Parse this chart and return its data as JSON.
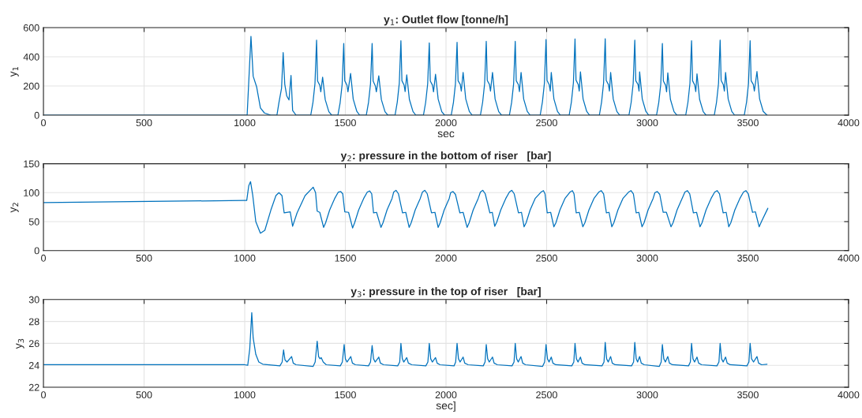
{
  "chart_data": [
    {
      "type": "line",
      "title": "y$_{1}$: Outlet flow [tonne/h]",
      "xlabel": "sec",
      "ylabel": "y$_{1}$",
      "xlim": [
        0,
        4000
      ],
      "xticks": [
        0,
        500,
        1000,
        1500,
        2000,
        2500,
        3000,
        3500,
        4000
      ],
      "ylim": [
        0,
        600
      ],
      "yticks": [
        0,
        200,
        400,
        600
      ],
      "grid": true,
      "series": [
        {
          "color": "#0072bd",
          "x": [
            0,
            1012,
            1031,
            1042,
            1059,
            1078,
            1098,
            1130,
            1160,
            1170,
            1183,
            1191,
            1199,
            1209,
            1220,
            1230,
            1238,
            1255,
            1328,
            1339,
            1349,
            1357,
            1362,
            1373,
            1378,
            1387,
            1400,
            1418,
            1432,
            1463,
            1474,
            1484,
            1492,
            1497,
            1508,
            1513,
            1526,
            1539,
            1557,
            1571,
            1604,
            1615,
            1625,
            1633,
            1638,
            1649,
            1654,
            1666,
            1679,
            1697,
            1711,
            1747,
            1758,
            1768,
            1776,
            1781,
            1792,
            1797,
            1805,
            1818,
            1836,
            1850,
            1888,
            1899,
            1909,
            1917,
            1922,
            1933,
            1938,
            1948,
            1961,
            1979,
            1993,
            2026,
            2037,
            2047,
            2055,
            2060,
            2071,
            2076,
            2085,
            2098,
            2116,
            2130,
            2171,
            2182,
            2192,
            2200,
            2205,
            2216,
            2221,
            2231,
            2244,
            2262,
            2276,
            2315,
            2326,
            2336,
            2344,
            2349,
            2360,
            2365,
            2373,
            2386,
            2404,
            2418,
            2468,
            2479,
            2489,
            2497,
            2502,
            2513,
            2518,
            2523,
            2536,
            2554,
            2568,
            2612,
            2623,
            2633,
            2641,
            2646,
            2657,
            2662,
            2668,
            2681,
            2699,
            2713,
            2762,
            2773,
            2783,
            2791,
            2796,
            2807,
            2812,
            2818,
            2831,
            2849,
            2863,
            2909,
            2920,
            2930,
            2938,
            2943,
            2954,
            2959,
            2962,
            2975,
            2993,
            3007,
            3046,
            3057,
            3067,
            3075,
            3080,
            3091,
            3096,
            3102,
            3115,
            3133,
            3147,
            3191,
            3202,
            3212,
            3220,
            3225,
            3236,
            3241,
            3247,
            3260,
            3278,
            3292,
            3333,
            3344,
            3354,
            3362,
            3367,
            3378,
            3383,
            3389,
            3402,
            3420,
            3434,
            3482,
            3493,
            3503,
            3511,
            3516,
            3527,
            3532,
            3545,
            3558,
            3576,
            3595
          ],
          "values": [
            0,
            0,
            540,
            267,
            195,
            50,
            15,
            0,
            0,
            86,
            185,
            429,
            212,
            131,
            104,
            272,
            32,
            0,
            0,
            87,
            216,
            514,
            234,
            205,
            160,
            260,
            106,
            24,
            0,
            0,
            85,
            210,
            492,
            236,
            205,
            160,
            286,
            110,
            26,
            0,
            0,
            87,
            216,
            492,
            234,
            200,
            160,
            270,
            106,
            24,
            0,
            0,
            90,
            220,
            510,
            236,
            205,
            162,
            276,
            108,
            25,
            0,
            0,
            88,
            215,
            496,
            234,
            205,
            160,
            280,
            110,
            24,
            0,
            0,
            87,
            216,
            499,
            236,
            210,
            165,
            293,
            112,
            25,
            0,
            0,
            88,
            218,
            506,
            238,
            210,
            165,
            293,
            110,
            24,
            0,
            0,
            87,
            216,
            506,
            236,
            208,
            162,
            293,
            110,
            25,
            0,
            0,
            90,
            220,
            519,
            238,
            208,
            165,
            293,
            112,
            25,
            0,
            0,
            90,
            222,
            523,
            240,
            210,
            165,
            297,
            112,
            26,
            0,
            0,
            90,
            222,
            524,
            238,
            210,
            165,
            293,
            110,
            25,
            0,
            0,
            88,
            218,
            514,
            236,
            210,
            165,
            297,
            112,
            26,
            0,
            0,
            86,
            212,
            492,
            234,
            205,
            160,
            290,
            108,
            24,
            0,
            0,
            88,
            218,
            510,
            236,
            205,
            162,
            283,
            108,
            24,
            0,
            0,
            88,
            218,
            515,
            238,
            208,
            165,
            293,
            110,
            25,
            0,
            0,
            88,
            218,
            510,
            236,
            210,
            165,
            299,
            112,
            26,
            0
          ]
        }
      ]
    },
    {
      "type": "line",
      "title": "y$_{2}$: pressure in the bottom of riser   [bar]",
      "ylabel": "y$_{2}$",
      "xlim": [
        0,
        4000
      ],
      "xticks": [
        0,
        500,
        1000,
        1500,
        2000,
        2500,
        3000,
        3500,
        4000
      ],
      "ylim": [
        0,
        150
      ],
      "yticks": [
        0,
        50,
        100,
        150
      ],
      "grid": true,
      "series": [
        {
          "color": "#0072bd",
          "x": [
            0,
            1000,
            1010,
            1020,
            1029,
            1040,
            1055,
            1078,
            1100,
            1130,
            1155,
            1170,
            1185,
            1196,
            1226,
            1238,
            1260,
            1300,
            1340,
            1352,
            1360,
            1373,
            1392,
            1402,
            1422,
            1447,
            1465,
            1477,
            1487,
            1497,
            1516,
            1536,
            1546,
            1566,
            1591,
            1609,
            1621,
            1631,
            1640,
            1655,
            1677,
            1687,
            1707,
            1732,
            1740,
            1752,
            1764,
            1784,
            1800,
            1817,
            1827,
            1847,
            1872,
            1883,
            1895,
            1907,
            1928,
            1945,
            1961,
            1971,
            1991,
            2016,
            2023,
            2035,
            2047,
            2069,
            2085,
            2105,
            2115,
            2135,
            2160,
            2171,
            2183,
            2195,
            2218,
            2230,
            2242,
            2252,
            2272,
            2297,
            2315,
            2327,
            2339,
            2360,
            2375,
            2388,
            2398,
            2418,
            2443,
            2472,
            2484,
            2492,
            2503,
            2520,
            2536,
            2546,
            2566,
            2591,
            2616,
            2628,
            2636,
            2647,
            2662,
            2680,
            2690,
            2710,
            2735,
            2759,
            2771,
            2783,
            2797,
            2810,
            2824,
            2834,
            2854,
            2879,
            2907,
            2919,
            2931,
            2945,
            2958,
            2974,
            2984,
            3004,
            3029,
            3038,
            3050,
            3062,
            3079,
            3095,
            3118,
            3128,
            3148,
            3173,
            3187,
            3199,
            3211,
            3229,
            3245,
            3262,
            3272,
            3292,
            3317,
            3335,
            3347,
            3359,
            3377,
            3392,
            3405,
            3415,
            3435,
            3460,
            3478,
            3490,
            3502,
            3523,
            3537,
            3556,
            3570,
            3599
          ],
          "values": [
            83,
            86.5,
            86.5,
            112,
            119,
            95,
            50,
            30,
            35,
            70,
            95,
            100,
            95,
            65,
            67,
            42,
            65,
            95,
            109.5,
            100,
            68,
            66,
            40,
            48,
            70,
            90,
            101,
            102,
            98,
            67,
            66,
            39,
            48,
            70,
            90,
            101,
            103,
            98,
            65,
            66,
            40,
            48,
            70,
            90,
            101,
            104,
            98,
            65,
            66,
            40,
            48,
            70,
            90,
            101,
            104,
            98,
            65,
            66,
            40,
            48,
            70,
            90,
            100,
            102,
            97,
            65,
            66,
            40,
            48,
            70,
            90,
            101,
            104,
            98,
            65,
            66,
            42,
            49,
            70,
            90,
            101,
            104,
            98,
            65,
            66,
            41,
            48,
            70,
            90,
            101,
            103.5,
            98,
            65,
            66,
            41,
            48,
            70,
            90,
            101,
            103.5,
            98,
            65,
            66,
            41,
            48,
            70,
            90,
            101,
            103.5,
            98,
            65,
            66,
            41,
            48,
            70,
            90,
            101,
            103.5,
            98,
            65,
            66,
            41,
            48,
            70,
            90,
            100,
            102,
            97,
            66,
            66,
            41,
            48,
            70,
            90,
            101,
            103.5,
            98,
            65,
            66,
            41,
            48,
            70,
            90,
            101,
            103.5,
            98,
            65,
            66,
            41,
            48,
            70,
            90,
            101,
            103.5,
            98,
            66,
            67,
            41,
            52,
            73
          ]
        }
      ]
    },
    {
      "type": "line",
      "title": "y$_{3}$: pressure in the top of riser   [bar]",
      "xlabel": "sec]",
      "ylabel": "y$_{3}$",
      "xlim": [
        0,
        4000
      ],
      "xticks": [
        0,
        500,
        1000,
        1500,
        2000,
        2500,
        3000,
        3500,
        4000
      ],
      "ylim": [
        22,
        30
      ],
      "yticks": [
        22,
        24,
        26,
        28,
        30
      ],
      "grid": true,
      "series": [
        {
          "color": "#0072bd",
          "x": [
            0,
            1000,
            1015,
            1025,
            1035,
            1042,
            1055,
            1070,
            1090,
            1175,
            1186,
            1193,
            1200,
            1210,
            1233,
            1241,
            1255,
            1340,
            1350,
            1360,
            1367,
            1374,
            1380,
            1390,
            1405,
            1475,
            1485,
            1494,
            1500,
            1508,
            1527,
            1535,
            1550,
            1615,
            1625,
            1633,
            1640,
            1648,
            1666,
            1674,
            1690,
            1760,
            1770,
            1776,
            1783,
            1790,
            1805,
            1813,
            1830,
            1900,
            1910,
            1917,
            1924,
            1932,
            1948,
            1956,
            1970,
            2040,
            2048,
            2055,
            2062,
            2070,
            2085,
            2093,
            2110,
            2185,
            2194,
            2200,
            2207,
            2215,
            2231,
            2239,
            2255,
            2328,
            2338,
            2344,
            2351,
            2359,
            2373,
            2381,
            2395,
            2480,
            2490,
            2497,
            2504,
            2512,
            2523,
            2531,
            2545,
            2625,
            2635,
            2641,
            2648,
            2656,
            2668,
            2676,
            2690,
            2775,
            2785,
            2791,
            2798,
            2806,
            2818,
            2826,
            2840,
            2922,
            2932,
            2938,
            2945,
            2952,
            2962,
            2970,
            2985,
            3060,
            3069,
            3075,
            3082,
            3090,
            3102,
            3110,
            3125,
            3205,
            3214,
            3220,
            3227,
            3235,
            3247,
            3255,
            3270,
            3346,
            3356,
            3362,
            3369,
            3377,
            3389,
            3397,
            3412,
            3495,
            3505,
            3511,
            3518,
            3528,
            3545,
            3553,
            3568,
            3595
          ],
          "values": [
            24.05,
            24.05,
            24.0,
            25.5,
            28.8,
            26.5,
            25.0,
            24.3,
            24.1,
            23.95,
            24.3,
            25.4,
            24.5,
            24.3,
            24.8,
            24.2,
            24.05,
            23.9,
            24.3,
            26.2,
            24.8,
            24.6,
            24.7,
            24.3,
            24.05,
            23.95,
            24.3,
            25.9,
            24.6,
            24.3,
            24.8,
            24.2,
            24.05,
            23.95,
            24.3,
            25.8,
            24.6,
            24.3,
            24.75,
            24.2,
            24.05,
            23.95,
            24.3,
            26.0,
            24.6,
            24.3,
            24.7,
            24.2,
            24.05,
            23.95,
            24.3,
            26.0,
            24.6,
            24.3,
            24.7,
            24.2,
            24.05,
            23.95,
            24.3,
            26.0,
            24.6,
            24.3,
            24.75,
            24.2,
            24.05,
            23.95,
            24.3,
            25.9,
            24.6,
            24.3,
            24.75,
            24.2,
            24.05,
            23.95,
            24.3,
            26.0,
            24.6,
            24.3,
            24.8,
            24.2,
            24.05,
            23.9,
            24.3,
            25.9,
            24.6,
            24.3,
            24.75,
            24.2,
            24.05,
            23.95,
            24.3,
            26.0,
            24.6,
            24.3,
            24.75,
            24.2,
            24.05,
            23.95,
            24.3,
            26.1,
            24.6,
            24.3,
            24.8,
            24.2,
            24.05,
            23.95,
            24.3,
            26.1,
            24.6,
            24.3,
            24.8,
            24.2,
            24.05,
            23.9,
            24.3,
            25.9,
            24.6,
            24.3,
            24.8,
            24.2,
            24.05,
            23.95,
            24.3,
            26.0,
            24.6,
            24.3,
            24.75,
            24.2,
            24.05,
            23.95,
            24.3,
            26.0,
            24.6,
            24.3,
            24.75,
            24.2,
            24.05,
            23.95,
            24.3,
            26.0,
            24.6,
            24.3,
            24.8,
            24.2,
            24.05,
            24.1
          ]
        }
      ]
    }
  ]
}
